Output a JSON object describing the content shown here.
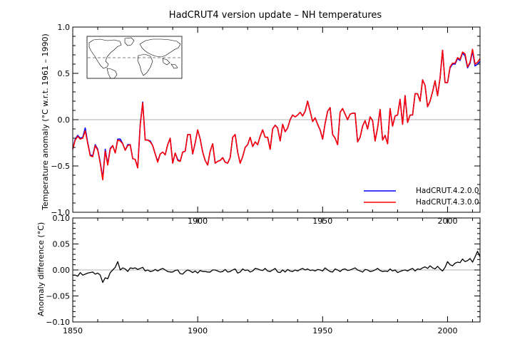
{
  "chart_data": [
    {
      "type": "line",
      "title": "HadCRUT4 version update – NH temperatures",
      "xlabel": "",
      "ylabel": "Temperature anomaly (°C w.r.t. 1961 – 1990)",
      "xlim": [
        1850,
        2013
      ],
      "ylim": [
        -1.0,
        1.0
      ],
      "x_ticks": [
        1900,
        1950,
        2000
      ],
      "x_tick_labels": [
        "1900",
        "1950",
        "2000"
      ],
      "y_ticks": [
        -1.0,
        -0.5,
        0.0,
        0.5,
        1.0
      ],
      "y_tick_labels": [
        "−1.0",
        "−0.5",
        "0.0",
        "0.5",
        "1.0"
      ],
      "zero_line": true,
      "legend_position": "bottom-right",
      "inset": "world map with Northern Hemisphere outlined",
      "x": [
        1850,
        1851,
        1852,
        1853,
        1854,
        1855,
        1856,
        1857,
        1858,
        1859,
        1860,
        1861,
        1862,
        1863,
        1864,
        1865,
        1866,
        1867,
        1868,
        1869,
        1870,
        1871,
        1872,
        1873,
        1874,
        1875,
        1876,
        1877,
        1878,
        1879,
        1880,
        1881,
        1882,
        1883,
        1884,
        1885,
        1886,
        1887,
        1888,
        1889,
        1890,
        1891,
        1892,
        1893,
        1894,
        1895,
        1896,
        1897,
        1898,
        1899,
        1900,
        1901,
        1902,
        1903,
        1904,
        1905,
        1906,
        1907,
        1908,
        1909,
        1910,
        1911,
        1912,
        1913,
        1914,
        1915,
        1916,
        1917,
        1918,
        1919,
        1920,
        1921,
        1922,
        1923,
        1924,
        1925,
        1926,
        1927,
        1928,
        1929,
        1930,
        1931,
        1932,
        1933,
        1934,
        1935,
        1936,
        1937,
        1938,
        1939,
        1940,
        1941,
        1942,
        1943,
        1944,
        1945,
        1946,
        1947,
        1948,
        1949,
        1950,
        1951,
        1952,
        1953,
        1954,
        1955,
        1956,
        1957,
        1958,
        1959,
        1960,
        1961,
        1962,
        1963,
        1964,
        1965,
        1966,
        1967,
        1968,
        1969,
        1970,
        1971,
        1972,
        1973,
        1974,
        1975,
        1976,
        1977,
        1978,
        1979,
        1980,
        1981,
        1982,
        1983,
        1984,
        1985,
        1986,
        1987,
        1988,
        1989,
        1990,
        1991,
        1992,
        1993,
        1994,
        1995,
        1996,
        1997,
        1998,
        1999,
        2000,
        2001,
        2002,
        2003,
        2004,
        2005,
        2006,
        2007,
        2008,
        2009,
        2010,
        2011,
        2012,
        2013
      ],
      "series": [
        {
          "name": "HadCRUT.4.2.0.0",
          "color": "#0000ff",
          "values": [
            -0.31,
            -0.21,
            -0.17,
            -0.2,
            -0.19,
            -0.09,
            -0.25,
            -0.38,
            -0.39,
            -0.27,
            -0.32,
            -0.46,
            -0.63,
            -0.32,
            -0.48,
            -0.31,
            -0.28,
            -0.36,
            -0.21,
            -0.21,
            -0.26,
            -0.33,
            -0.27,
            -0.27,
            -0.42,
            -0.43,
            -0.52,
            -0.05,
            0.19,
            -0.22,
            -0.22,
            -0.23,
            -0.28,
            -0.37,
            -0.45,
            -0.37,
            -0.35,
            -0.38,
            -0.27,
            -0.2,
            -0.47,
            -0.36,
            -0.43,
            -0.45,
            -0.35,
            -0.34,
            -0.16,
            -0.16,
            -0.37,
            -0.25,
            -0.11,
            -0.21,
            -0.35,
            -0.44,
            -0.49,
            -0.34,
            -0.26,
            -0.47,
            -0.45,
            -0.44,
            -0.41,
            -0.46,
            -0.47,
            -0.41,
            -0.19,
            -0.16,
            -0.35,
            -0.47,
            -0.4,
            -0.3,
            -0.27,
            -0.19,
            -0.29,
            -0.24,
            -0.27,
            -0.18,
            -0.11,
            -0.19,
            -0.19,
            -0.32,
            -0.1,
            -0.06,
            -0.09,
            -0.23,
            -0.05,
            -0.13,
            -0.09,
            0.0,
            0.05,
            0.03,
            0.05,
            0.08,
            0.04,
            0.09,
            0.2,
            0.09,
            -0.02,
            0.02,
            -0.05,
            -0.11,
            -0.21,
            -0.04,
            0.09,
            0.13,
            -0.16,
            -0.2,
            -0.27,
            0.08,
            0.12,
            0.06,
            0.0,
            0.06,
            0.07,
            0.07,
            -0.24,
            -0.19,
            -0.07,
            -0.01,
            -0.1,
            0.03,
            -0.01,
            -0.23,
            -0.09,
            0.11,
            -0.22,
            -0.17,
            -0.26,
            0.12,
            -0.07,
            0.04,
            0.05,
            0.22,
            -0.05,
            0.26,
            -0.03,
            0.05,
            0.05,
            0.28,
            0.28,
            0.2,
            0.43,
            0.37,
            0.14,
            0.2,
            0.3,
            0.42,
            0.26,
            0.45,
            0.75,
            0.4,
            0.4,
            0.56,
            0.6,
            0.6,
            0.66,
            0.64,
            0.72,
            0.69,
            0.56,
            0.61,
            0.74,
            0.58,
            0.6,
            0.63
          ]
        },
        {
          "name": "HadCRUT.4.3.0.0",
          "color": "#ff0000",
          "values": [
            -0.32,
            -0.22,
            -0.18,
            -0.21,
            -0.2,
            -0.12,
            -0.26,
            -0.39,
            -0.4,
            -0.28,
            -0.33,
            -0.47,
            -0.65,
            -0.34,
            -0.49,
            -0.32,
            -0.28,
            -0.36,
            -0.22,
            -0.23,
            -0.26,
            -0.33,
            -0.28,
            -0.27,
            -0.42,
            -0.43,
            -0.52,
            -0.06,
            0.18,
            -0.22,
            -0.22,
            -0.24,
            -0.28,
            -0.37,
            -0.46,
            -0.37,
            -0.35,
            -0.38,
            -0.27,
            -0.2,
            -0.47,
            -0.36,
            -0.44,
            -0.45,
            -0.35,
            -0.34,
            -0.16,
            -0.16,
            -0.37,
            -0.25,
            -0.11,
            -0.21,
            -0.35,
            -0.44,
            -0.49,
            -0.34,
            -0.26,
            -0.47,
            -0.45,
            -0.44,
            -0.41,
            -0.46,
            -0.47,
            -0.41,
            -0.19,
            -0.16,
            -0.35,
            -0.47,
            -0.4,
            -0.3,
            -0.27,
            -0.19,
            -0.29,
            -0.24,
            -0.27,
            -0.18,
            -0.11,
            -0.19,
            -0.19,
            -0.32,
            -0.1,
            -0.06,
            -0.09,
            -0.23,
            -0.05,
            -0.13,
            -0.09,
            0.0,
            0.05,
            0.03,
            0.05,
            0.08,
            0.04,
            0.09,
            0.2,
            0.09,
            -0.02,
            0.02,
            -0.05,
            -0.11,
            -0.21,
            -0.04,
            0.09,
            0.13,
            -0.16,
            -0.2,
            -0.27,
            0.08,
            0.12,
            0.06,
            0.0,
            0.06,
            0.07,
            0.07,
            -0.24,
            -0.19,
            -0.07,
            -0.01,
            -0.1,
            0.03,
            -0.01,
            -0.23,
            -0.09,
            0.11,
            -0.22,
            -0.17,
            -0.26,
            0.12,
            -0.07,
            0.04,
            0.05,
            0.22,
            -0.05,
            0.26,
            -0.03,
            0.05,
            0.05,
            0.28,
            0.28,
            0.2,
            0.43,
            0.37,
            0.14,
            0.2,
            0.3,
            0.42,
            0.26,
            0.45,
            0.75,
            0.4,
            0.4,
            0.57,
            0.61,
            0.61,
            0.67,
            0.65,
            0.73,
            0.71,
            0.57,
            0.62,
            0.76,
            0.6,
            0.62,
            0.66
          ]
        }
      ]
    },
    {
      "type": "line",
      "title": "",
      "xlabel": "",
      "ylabel": "Anomaly difference (°C)",
      "xlim": [
        1850,
        2013
      ],
      "ylim": [
        -0.1,
        0.1
      ],
      "x_ticks": [
        1850,
        1900,
        1950,
        2000
      ],
      "x_tick_labels": [
        "1850",
        "1900",
        "1950",
        "2000"
      ],
      "y_ticks": [
        -0.1,
        -0.05,
        0.0,
        0.05,
        0.1
      ],
      "y_tick_labels": [
        "−0.10",
        "−0.05",
        "0.00",
        "0.05",
        "0.10"
      ],
      "zero_line": true,
      "series": [
        {
          "name": "",
          "color": "#000000",
          "values": [
            -0.01,
            -0.01,
            -0.012,
            -0.005,
            -0.01,
            -0.008,
            -0.006,
            -0.005,
            -0.004,
            -0.008,
            -0.006,
            -0.01,
            -0.024,
            -0.015,
            -0.017,
            -0.005,
            0.0,
            0.005,
            0.016,
            0.0,
            0.004,
            0.002,
            -0.003,
            0.004,
            0.003,
            0.004,
            0.001,
            0.003,
            0.005,
            -0.002,
            0.0,
            -0.003,
            -0.002,
            0.001,
            -0.002,
            0.001,
            0.003,
            0.0,
            -0.003,
            -0.004,
            -0.004,
            -0.001,
            0.0,
            -0.007,
            -0.008,
            -0.003,
            0.0,
            -0.002,
            -0.005,
            -0.002,
            -0.006,
            -0.001,
            -0.003,
            -0.003,
            -0.004,
            -0.004,
            0.0,
            0.0,
            -0.002,
            -0.004,
            -0.003,
            0.001,
            -0.004,
            -0.003,
            0.0,
            0.002,
            -0.006,
            -0.004,
            0.002,
            -0.001,
            0.0,
            -0.004,
            -0.002,
            0.003,
            0.002,
            0.0,
            -0.001,
            0.003,
            -0.002,
            -0.003,
            0.0,
            0.003,
            -0.004,
            -0.005,
            0.0,
            -0.004,
            0.001,
            -0.002,
            -0.003,
            0.0,
            -0.002,
            0.001,
            0.003,
            0.0,
            0.002,
            -0.001,
            0.0,
            -0.002,
            0.001,
            0.0,
            -0.002,
            0.004,
            0.0,
            -0.003,
            -0.004,
            0.002,
            0.0,
            -0.003,
            0.001,
            0.002,
            -0.001,
            0.0,
            0.002,
            0.004,
            0.0,
            -0.002,
            -0.004,
            0.001,
            0.0,
            -0.003,
            -0.002,
            0.0,
            0.003,
            -0.001,
            -0.003,
            -0.002,
            -0.003,
            0.002,
            -0.002,
            0.0,
            -0.005,
            -0.003,
            -0.001,
            0.0,
            -0.002,
            0.001,
            0.003,
            -0.002,
            0.002,
            0.001,
            0.004,
            0.006,
            0.003,
            0.008,
            0.004,
            0.002,
            0.007,
            0.002,
            -0.002,
            0.005,
            0.016,
            0.01,
            0.008,
            0.013,
            0.015,
            0.014,
            0.021,
            0.016,
            0.018,
            0.022,
            0.015,
            0.025,
            0.036,
            0.025
          ]
        }
      ]
    }
  ]
}
